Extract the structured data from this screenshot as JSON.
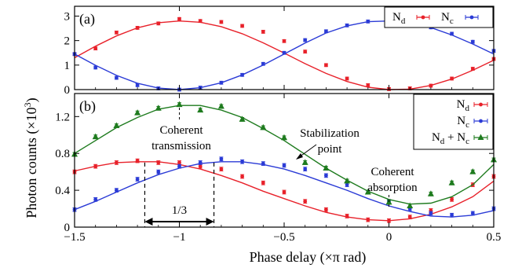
{
  "figure": {
    "y_axis_label": "Photon counts (×10",
    "y_axis_label_sup": "3",
    "y_axis_label_end": ")",
    "x_axis_label": "Phase delay (×π rad)"
  },
  "colors": {
    "Nd": "#e8212a",
    "Nc": "#2b3bd6",
    "sum": "#1e7b1e"
  },
  "chart_data": [
    {
      "panel": "(a)",
      "type": "scatter",
      "xlim": [
        -1.5,
        0.5
      ],
      "ylim": [
        0,
        3.4
      ],
      "xticks": [
        -1.5,
        -1,
        -0.5,
        0,
        0.5
      ],
      "x_tick_labels": [
        "",
        "",
        "",
        "",
        ""
      ],
      "yticks": [
        0,
        1,
        2,
        3
      ],
      "y_tick_labels": [
        "0",
        "1",
        "2",
        "3"
      ],
      "legend_placement": "top-right",
      "series": [
        {
          "name": "N",
          "name_sub": "d",
          "color_key": "Nd",
          "marker": "dot",
          "x": [
            -1.5,
            -1.4,
            -1.3,
            -1.2,
            -1.1,
            -1.0,
            -0.9,
            -0.8,
            -0.7,
            -0.6,
            -0.5,
            -0.4,
            -0.3,
            -0.2,
            -0.1,
            0.0,
            0.1,
            0.2,
            0.3,
            0.4,
            0.5
          ],
          "y": [
            1.45,
            1.68,
            2.33,
            2.52,
            2.7,
            2.88,
            2.8,
            2.76,
            2.6,
            2.36,
            1.98,
            1.55,
            1.0,
            0.45,
            0.18,
            0.02,
            0.05,
            0.16,
            0.45,
            0.85,
            1.25
          ],
          "fit": {
            "x": [
              -1.5,
              -1.4,
              -1.3,
              -1.2,
              -1.1,
              -1.0,
              -0.9,
              -0.8,
              -0.7,
              -0.6,
              -0.5,
              -0.4,
              -0.3,
              -0.2,
              -0.1,
              0.0,
              0.1,
              0.2,
              0.3,
              0.4,
              0.5
            ],
            "y": [
              1.3,
              1.77,
              2.19,
              2.52,
              2.73,
              2.8,
              2.75,
              2.57,
              2.28,
              1.91,
              1.49,
              1.06,
              0.66,
              0.33,
              0.1,
              0.0,
              0.02,
              0.17,
              0.43,
              0.79,
              1.2
            ]
          }
        },
        {
          "name": "N",
          "name_sub": "c",
          "color_key": "Nc",
          "marker": "dot",
          "x": [
            -1.5,
            -1.4,
            -1.3,
            -1.2,
            -1.1,
            -1.0,
            -0.9,
            -0.8,
            -0.7,
            -0.6,
            -0.5,
            -0.4,
            -0.3,
            -0.2,
            -0.1,
            0.0,
            0.1,
            0.2,
            0.3,
            0.4,
            0.5
          ],
          "y": [
            1.45,
            0.9,
            0.48,
            0.18,
            0.05,
            0.0,
            0.08,
            0.28,
            0.6,
            1.05,
            1.5,
            2.02,
            2.38,
            2.62,
            2.78,
            2.82,
            2.74,
            2.54,
            2.28,
            1.95,
            1.58
          ],
          "fit": {
            "x": [
              -1.5,
              -1.4,
              -1.3,
              -1.2,
              -1.1,
              -1.0,
              -0.9,
              -0.8,
              -0.7,
              -0.6,
              -0.5,
              -0.4,
              -0.3,
              -0.2,
              -0.1,
              0.0,
              0.1,
              0.2,
              0.3,
              0.4,
              0.5
            ],
            "y": [
              1.45,
              0.99,
              0.58,
              0.26,
              0.06,
              0.0,
              0.08,
              0.28,
              0.6,
              1.0,
              1.45,
              1.9,
              2.31,
              2.6,
              2.77,
              2.8,
              2.72,
              2.53,
              2.23,
              1.86,
              1.45
            ]
          }
        }
      ]
    },
    {
      "panel": "(b)",
      "type": "scatter",
      "xlim": [
        -1.5,
        0.5
      ],
      "ylim": [
        0,
        1.45
      ],
      "xticks": [
        -1.5,
        -1,
        -0.5,
        0,
        0.5
      ],
      "x_tick_labels": [
        "−1.5",
        "−1",
        "−0.5",
        "0",
        "0.5"
      ],
      "yticks": [
        0,
        0.4,
        0.8,
        1.2
      ],
      "y_tick_labels": [
        "0",
        "0.4",
        "0.8",
        "1.2"
      ],
      "legend_placement": "top-right",
      "annotations": {
        "coherent_transmission": [
          "Coherent",
          "transmission"
        ],
        "stabilization_point": [
          "Stabilization",
          "point"
        ],
        "coherent_absorption": [
          "Coherent",
          "absorption"
        ],
        "interval_label": "1/3"
      },
      "series": [
        {
          "name": "N",
          "name_sub": "d",
          "color_key": "Nd",
          "marker": "dot",
          "x": [
            -1.5,
            -1.4,
            -1.3,
            -1.2,
            -1.1,
            -1.0,
            -0.9,
            -0.8,
            -0.7,
            -0.6,
            -0.5,
            -0.4,
            -0.3,
            -0.2,
            -0.1,
            0.0,
            0.1,
            0.2,
            0.3,
            0.4,
            0.5
          ],
          "y": [
            0.6,
            0.66,
            0.7,
            0.72,
            0.7,
            0.7,
            0.66,
            0.63,
            0.55,
            0.48,
            0.38,
            0.28,
            0.19,
            0.12,
            0.08,
            0.07,
            0.11,
            0.18,
            0.3,
            0.46,
            0.55
          ],
          "fit": {
            "x": [
              -1.5,
              -1.4,
              -1.3,
              -1.2,
              -1.1,
              -1.0,
              -0.9,
              -0.8,
              -0.7,
              -0.6,
              -0.5,
              -0.4,
              -0.3,
              -0.2,
              -0.1,
              0.0,
              0.1,
              0.2,
              0.3,
              0.4,
              0.5
            ],
            "y": [
              0.61,
              0.66,
              0.7,
              0.71,
              0.71,
              0.68,
              0.63,
              0.56,
              0.48,
              0.39,
              0.31,
              0.23,
              0.16,
              0.11,
              0.08,
              0.07,
              0.09,
              0.14,
              0.22,
              0.33,
              0.5
            ]
          }
        },
        {
          "name": "N",
          "name_sub": "c",
          "color_key": "Nc",
          "marker": "dot",
          "x": [
            -1.5,
            -1.4,
            -1.3,
            -1.2,
            -1.1,
            -1.0,
            -0.9,
            -0.8,
            -0.7,
            -0.6,
            -0.5,
            -0.4,
            -0.3,
            -0.2,
            -0.1,
            0.0,
            0.1,
            0.2,
            0.3,
            0.4,
            0.5
          ],
          "y": [
            0.19,
            0.3,
            0.4,
            0.52,
            0.6,
            0.66,
            0.7,
            0.74,
            0.71,
            0.69,
            0.67,
            0.63,
            0.56,
            0.46,
            0.38,
            0.28,
            0.2,
            0.15,
            0.13,
            0.15,
            0.2
          ],
          "fit": {
            "x": [
              -1.5,
              -1.4,
              -1.3,
              -1.2,
              -1.1,
              -1.0,
              -0.9,
              -0.8,
              -0.7,
              -0.6,
              -0.5,
              -0.4,
              -0.3,
              -0.2,
              -0.1,
              0.0,
              0.1,
              0.2,
              0.3,
              0.4,
              0.5
            ],
            "y": [
              0.19,
              0.28,
              0.38,
              0.48,
              0.57,
              0.64,
              0.69,
              0.71,
              0.71,
              0.68,
              0.63,
              0.56,
              0.48,
              0.4,
              0.31,
              0.23,
              0.17,
              0.12,
              0.11,
              0.13,
              0.18
            ]
          }
        },
        {
          "name": "N",
          "name_sub": "d",
          "name_join": " + ",
          "name2": "N",
          "name2_sub": "c",
          "color_key": "sum",
          "marker": "triangle",
          "x": [
            -1.5,
            -1.4,
            -1.3,
            -1.2,
            -1.1,
            -1.0,
            -0.9,
            -0.8,
            -0.7,
            -0.6,
            -0.5,
            -0.4,
            -0.3,
            -0.2,
            -0.1,
            0.0,
            0.1,
            0.2,
            0.3,
            0.4,
            0.5
          ],
          "y": [
            0.79,
            0.98,
            1.1,
            1.24,
            1.29,
            1.33,
            1.27,
            1.31,
            1.17,
            1.08,
            0.97,
            0.7,
            0.64,
            0.5,
            0.38,
            0.27,
            0.23,
            0.36,
            0.48,
            0.6,
            0.73
          ],
          "fit": {
            "x": [
              -1.5,
              -1.4,
              -1.3,
              -1.2,
              -1.1,
              -1.0,
              -0.9,
              -0.8,
              -0.7,
              -0.6,
              -0.5,
              -0.4,
              -0.3,
              -0.2,
              -0.1,
              0.0,
              0.1,
              0.2,
              0.3,
              0.4,
              0.5
            ],
            "y": [
              0.8,
              0.94,
              1.08,
              1.19,
              1.28,
              1.32,
              1.32,
              1.27,
              1.19,
              1.07,
              0.94,
              0.79,
              0.64,
              0.51,
              0.39,
              0.3,
              0.25,
              0.26,
              0.33,
              0.46,
              0.68
            ]
          }
        }
      ]
    }
  ]
}
